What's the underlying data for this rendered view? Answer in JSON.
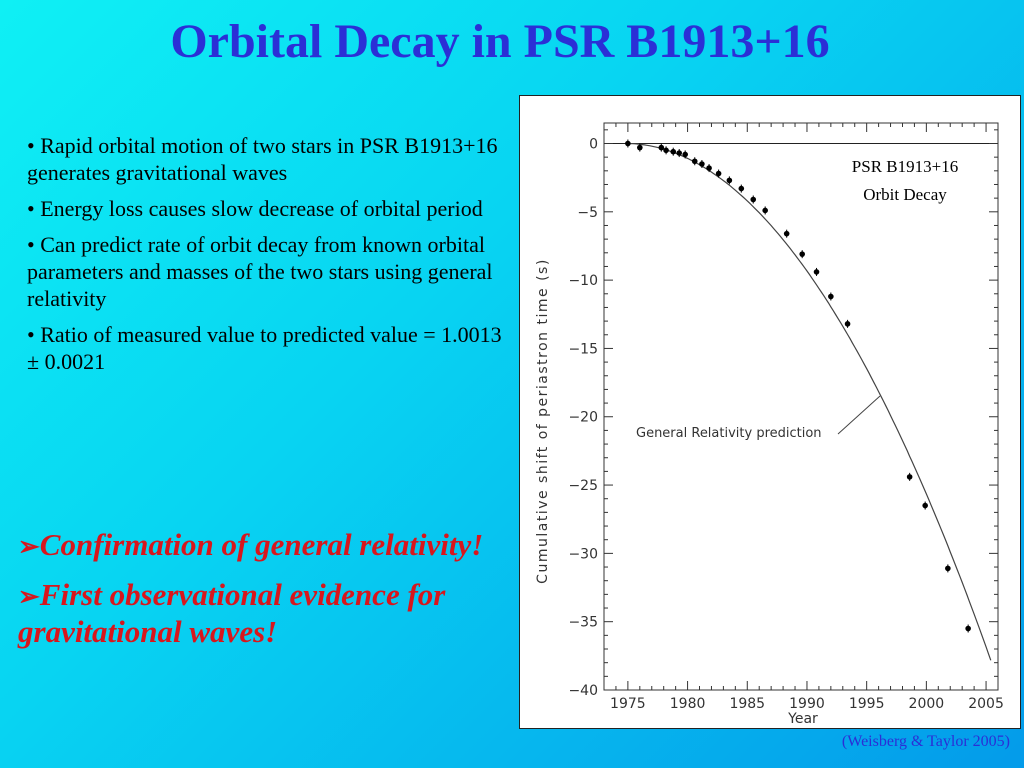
{
  "slide": {
    "title": "Orbital Decay in PSR B1913+16",
    "bullets": [
      "• Rapid orbital motion of two stars in PSR B1913+16 generates gravitational waves",
      "• Energy loss causes slow decrease of orbital period",
      "• Can predict rate of orbit decay from known orbital parameters and masses of the two stars using general relativity",
      "• Ratio of measured value to predicted value = 1.0013 ± 0.0021"
    ],
    "emphasis": [
      {
        "arrow": "➢",
        "text": "Confirmation of general relativity!"
      },
      {
        "arrow": "➢",
        "text": "First observational evidence for gravitational waves!"
      }
    ],
    "citation": "(Weisberg & Taylor 2005)",
    "colors": {
      "title": "#2b2fd6",
      "emphasis": "#d8161c",
      "background": "#08d4f2"
    }
  },
  "chart_data": {
    "type": "scatter",
    "legend_text": [
      "PSR B1913+16",
      "Orbit Decay"
    ],
    "xlabel": "Year",
    "ylabel": "Cumulative shift of periastron time (s)",
    "xlim": [
      1973,
      2006
    ],
    "ylim": [
      -40,
      1.5
    ],
    "xticks": [
      1975,
      1980,
      1985,
      1990,
      1995,
      2000,
      2005
    ],
    "yticks": [
      0,
      -5,
      -10,
      -15,
      -20,
      -25,
      -30,
      -35,
      -40
    ],
    "annotation": "General Relativity prediction",
    "curve_formula": "y = -0.0404 * (year - 1974.8)^2",
    "points": [
      [
        1975.0,
        0.0
      ],
      [
        1976.0,
        -0.3
      ],
      [
        1977.8,
        -0.3
      ],
      [
        1978.2,
        -0.5
      ],
      [
        1978.8,
        -0.6
      ],
      [
        1979.3,
        -0.7
      ],
      [
        1979.8,
        -0.8
      ],
      [
        1980.6,
        -1.3
      ],
      [
        1981.2,
        -1.5
      ],
      [
        1981.8,
        -1.8
      ],
      [
        1982.6,
        -2.2
      ],
      [
        1983.5,
        -2.7
      ],
      [
        1984.5,
        -3.3
      ],
      [
        1985.5,
        -4.1
      ],
      [
        1986.5,
        -4.9
      ],
      [
        1988.3,
        -6.6
      ],
      [
        1989.6,
        -8.1
      ],
      [
        1990.8,
        -9.4
      ],
      [
        1992.0,
        -11.2
      ],
      [
        1993.4,
        -13.2
      ],
      [
        1998.6,
        -24.4
      ],
      [
        1999.9,
        -26.5
      ],
      [
        2001.8,
        -31.1
      ],
      [
        2003.5,
        -35.5
      ]
    ],
    "grid": false
  }
}
